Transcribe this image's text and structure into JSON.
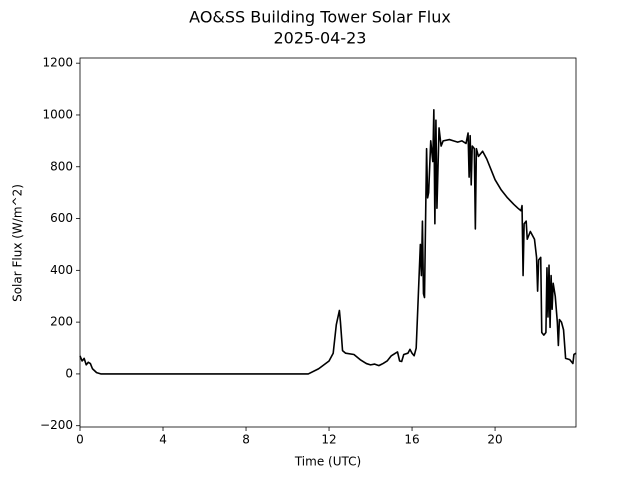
{
  "chart_data": {
    "type": "line",
    "title": "AO&SS Building Tower Solar Flux",
    "subtitle": "2025-04-23",
    "x_label": "Time (UTC)",
    "y_label": "Solar Flux (W/m^2)",
    "xlim": [
      0,
      23.9
    ],
    "xticks": [
      0,
      4,
      8,
      12,
      16,
      20
    ],
    "ylim": [
      -205,
      1220
    ],
    "yticks": [
      {
        "value": -200,
        "label": "−200"
      },
      0,
      200,
      400,
      600,
      800,
      1000,
      1200
    ],
    "x": [
      0,
      0.1,
      0.2,
      0.3,
      0.4,
      0.5,
      0.6,
      0.8,
      1,
      11,
      11.5,
      12,
      12.2,
      12.35,
      12.5,
      12.55,
      12.65,
      12.8,
      13.2,
      13.5,
      13.8,
      14,
      14.2,
      14.4,
      14.6,
      14.8,
      15,
      15.2,
      15.3,
      15.4,
      15.5,
      15.6,
      15.8,
      15.9,
      16.0,
      16.1,
      16.2,
      16.3,
      16.4,
      16.45,
      16.5,
      16.55,
      16.6,
      16.7,
      16.75,
      16.8,
      16.9,
      17.0,
      17.05,
      17.1,
      17.15,
      17.2,
      17.3,
      17.4,
      17.5,
      17.8,
      18.0,
      18.2,
      18.4,
      18.6,
      18.7,
      18.75,
      18.8,
      18.85,
      18.9,
      19.0,
      19.05,
      19.1,
      19.2,
      19.4,
      19.6,
      19.8,
      20.0,
      20.3,
      20.6,
      20.9,
      21.1,
      21.25,
      21.3,
      21.35,
      21.4,
      21.5,
      21.55,
      21.7,
      21.9,
      22.0,
      22.05,
      22.1,
      22.2,
      22.25,
      22.35,
      22.45,
      22.5,
      22.55,
      22.6,
      22.65,
      22.7,
      22.75,
      22.8,
      22.9,
      23.0,
      23.05,
      23.1,
      23.2,
      23.3,
      23.4,
      23.6,
      23.75,
      23.8,
      23.9
    ],
    "series": [
      {
        "color": "#000000",
        "values": [
          70,
          50,
          60,
          35,
          45,
          40,
          20,
          5,
          0,
          0,
          20,
          50,
          80,
          190,
          245,
          200,
          90,
          80,
          75,
          55,
          40,
          35,
          38,
          32,
          40,
          50,
          70,
          80,
          85,
          50,
          48,
          75,
          80,
          95,
          80,
          70,
          100,
          300,
          500,
          380,
          590,
          310,
          295,
          870,
          680,
          700,
          900,
          820,
          1020,
          580,
          980,
          640,
          950,
          880,
          900,
          905,
          900,
          895,
          900,
          890,
          930,
          760,
          920,
          730,
          880,
          870,
          560,
          870,
          840,
          860,
          830,
          790,
          750,
          710,
          680,
          655,
          640,
          630,
          650,
          380,
          580,
          590,
          520,
          550,
          520,
          450,
          320,
          440,
          450,
          160,
          150,
          160,
          410,
          220,
          420,
          180,
          380,
          250,
          350,
          300,
          200,
          110,
          210,
          200,
          170,
          60,
          55,
          40,
          75,
          80
        ]
      }
    ]
  }
}
